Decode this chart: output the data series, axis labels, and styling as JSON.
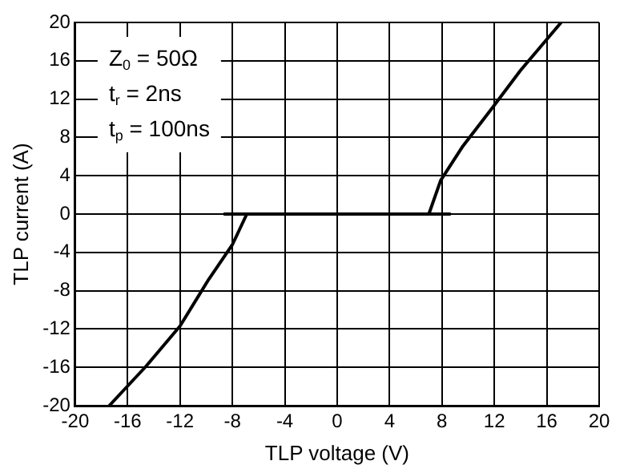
{
  "chart_data": {
    "type": "line",
    "xlabel": "TLP voltage (V)",
    "ylabel": "TLP current (A)",
    "x": [
      -17.4,
      -14.6,
      -12,
      -9.8,
      -8,
      -6.9,
      -8.6,
      8.6,
      7,
      7.9,
      9.6,
      11.8,
      14,
      17.1
    ],
    "series": [
      {
        "color": "#000000",
        "values": [
          -20,
          -15.9,
          -11.7,
          -6.8,
          -3.2,
          0,
          0,
          0,
          0,
          3.5,
          7.1,
          11,
          15,
          20
        ]
      }
    ],
    "xlim": [
      -20,
      20
    ],
    "xticks": [
      -20,
      -16,
      -12,
      -8,
      -4,
      0,
      4,
      8,
      12,
      16,
      20
    ],
    "ylim": [
      -20,
      20
    ],
    "yticks": [
      -20,
      -16,
      -12,
      -8,
      -4,
      0,
      4,
      8,
      12,
      16,
      20
    ],
    "grid": true,
    "legend": false,
    "marker": "none",
    "line_style": "solid",
    "annotations": [
      "Z$_{0}$ = 50Ω",
      "t$_{r}$ = 2ns",
      "t$_{p}$ = 100ns"
    ]
  }
}
